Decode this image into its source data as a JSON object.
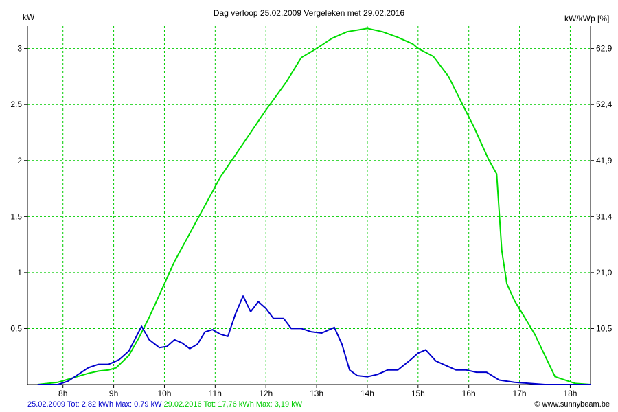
{
  "chart_data": {
    "type": "line",
    "title": "Dag  verloop 25.02.2009   Vergeleken met 29.02.2016",
    "ylabel_left": "kW",
    "ylabel_right": "kW/kWp [%]",
    "xlim": [
      7.3,
      18.4
    ],
    "ylim": [
      0,
      3.2
    ],
    "x_ticks": [
      8,
      9,
      10,
      11,
      12,
      13,
      14,
      15,
      16,
      17,
      18
    ],
    "x_tick_labels": [
      "8h",
      "9h",
      "10h",
      "11h",
      "12h",
      "13h",
      "14h",
      "15h",
      "16h",
      "17h",
      "18h"
    ],
    "y_ticks_left": [
      0.5,
      1,
      1.5,
      2,
      2.5,
      3
    ],
    "y_tick_labels_left": [
      "0.5",
      "1",
      "1.5",
      "2",
      "2.5",
      "3"
    ],
    "y_tick_labels_right": [
      "10,5",
      "21,0",
      "31,4",
      "41,9",
      "52,4",
      "62,9"
    ],
    "grid": true,
    "colors": {
      "series1": "#0000cc",
      "series2": "#00dd00",
      "grid": "#00cc00",
      "axis": "#000000"
    },
    "series": [
      {
        "name": "25.02.2009",
        "color": "#0000cc",
        "x": [
          7.5,
          7.9,
          8.1,
          8.3,
          8.5,
          8.7,
          8.9,
          9.1,
          9.3,
          9.55,
          9.7,
          9.9,
          10.05,
          10.2,
          10.35,
          10.5,
          10.65,
          10.8,
          10.95,
          11.1,
          11.25,
          11.4,
          11.55,
          11.7,
          11.85,
          12.0,
          12.15,
          12.35,
          12.5,
          12.7,
          12.9,
          13.1,
          13.35,
          13.5,
          13.65,
          13.8,
          14.0,
          14.2,
          14.4,
          14.6,
          14.85,
          15.0,
          15.15,
          15.35,
          15.55,
          15.75,
          15.95,
          16.15,
          16.35,
          16.6,
          16.9,
          17.2,
          17.5,
          17.8,
          18.1,
          18.4
        ],
        "values": [
          0.0,
          0.0,
          0.03,
          0.09,
          0.15,
          0.18,
          0.18,
          0.22,
          0.3,
          0.52,
          0.4,
          0.33,
          0.34,
          0.4,
          0.37,
          0.32,
          0.36,
          0.47,
          0.49,
          0.45,
          0.43,
          0.63,
          0.79,
          0.65,
          0.74,
          0.68,
          0.59,
          0.59,
          0.5,
          0.5,
          0.47,
          0.46,
          0.51,
          0.36,
          0.13,
          0.08,
          0.07,
          0.09,
          0.13,
          0.13,
          0.22,
          0.28,
          0.31,
          0.21,
          0.17,
          0.13,
          0.13,
          0.11,
          0.11,
          0.04,
          0.02,
          0.01,
          0.0,
          0.0,
          0.0,
          0.0
        ]
      },
      {
        "name": "29.02.2016",
        "color": "#00dd00",
        "x": [
          7.5,
          7.9,
          8.2,
          8.5,
          8.7,
          8.9,
          9.05,
          9.3,
          9.5,
          9.7,
          9.9,
          10.2,
          10.5,
          10.8,
          11.1,
          11.4,
          11.7,
          12.0,
          12.4,
          12.7,
          13.0,
          13.3,
          13.6,
          14.0,
          14.3,
          14.6,
          14.9,
          15.0,
          15.3,
          15.6,
          15.9,
          16.1,
          16.4,
          16.55,
          16.65,
          16.75,
          16.9,
          17.1,
          17.3,
          17.7,
          18.1,
          18.4
        ],
        "values": [
          0.0,
          0.02,
          0.06,
          0.1,
          0.12,
          0.13,
          0.15,
          0.26,
          0.42,
          0.6,
          0.8,
          1.1,
          1.35,
          1.6,
          1.85,
          2.05,
          2.25,
          2.45,
          2.7,
          2.92,
          3.0,
          3.09,
          3.15,
          3.18,
          3.15,
          3.1,
          3.04,
          3.0,
          2.93,
          2.75,
          2.48,
          2.3,
          2.0,
          1.88,
          1.2,
          0.9,
          0.75,
          0.6,
          0.45,
          0.07,
          0.01,
          0.0
        ]
      }
    ]
  },
  "footer": {
    "series1_text": "25.02.2009 Tot: 2,82 kWh Max: 0,79 kW",
    "series2_text": "29.02.2016 Tot: 17,76 kWh Max: 3,19 kW",
    "credit": "© www.sunnybeam.be"
  }
}
